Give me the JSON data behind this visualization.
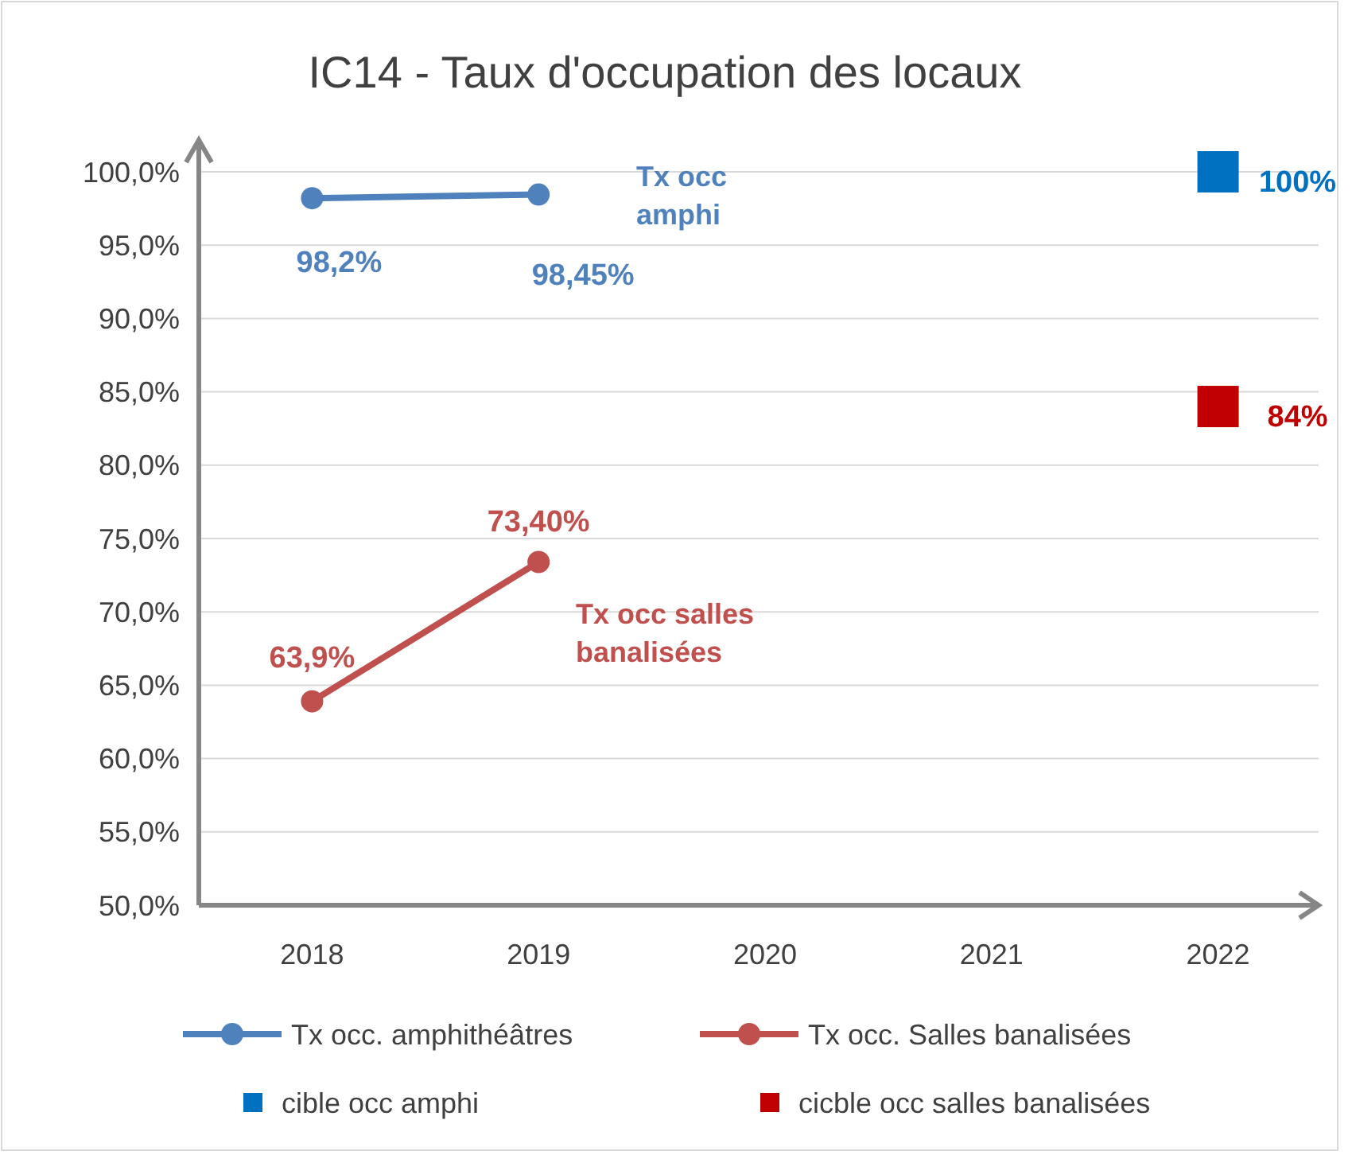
{
  "chart_data": {
    "type": "line",
    "title": "IC14 - Taux d'occupation des locaux",
    "categories": [
      "2018",
      "2019",
      "2020",
      "2021",
      "2022"
    ],
    "series": [
      {
        "name": "Tx occ. amphithéâtres",
        "color": "#4f81bd",
        "values": [
          98.2,
          98.45,
          null,
          null,
          null
        ],
        "marker": "circle",
        "value_labels": [
          "98,2%",
          "98,45%",
          null,
          null,
          null
        ]
      },
      {
        "name": "Tx occ. Salles banalisées",
        "color": "#c0504d",
        "values": [
          63.9,
          73.4,
          null,
          null,
          null
        ],
        "marker": "circle",
        "value_labels": [
          "63,9%",
          "73,40%",
          null,
          null,
          null
        ]
      },
      {
        "name": "cible occ amphi",
        "type": "scatter",
        "color": "#0070c0",
        "values": [
          null,
          null,
          null,
          null,
          100
        ],
        "marker": "square",
        "value_labels": [
          null,
          null,
          null,
          null,
          "100%"
        ]
      },
      {
        "name": "cicble occ salles banalisées",
        "type": "scatter",
        "color": "#c00000",
        "values": [
          null,
          null,
          null,
          null,
          84
        ],
        "marker": "square",
        "value_labels": [
          null,
          null,
          null,
          null,
          "84%"
        ]
      }
    ],
    "ylim": [
      50,
      100
    ],
    "yticks": [
      {
        "value": 50,
        "label": "50,0%"
      },
      {
        "value": 55,
        "label": "55,0%"
      },
      {
        "value": 60,
        "label": "60,0%"
      },
      {
        "value": 65,
        "label": "65,0%"
      },
      {
        "value": 70,
        "label": "70,0%"
      },
      {
        "value": 75,
        "label": "75,0%"
      },
      {
        "value": 80,
        "label": "80,0%"
      },
      {
        "value": 85,
        "label": "85,0%"
      },
      {
        "value": 90,
        "label": "90,0%"
      },
      {
        "value": 95,
        "label": "95,0%"
      },
      {
        "value": 100,
        "label": "100,0%"
      }
    ],
    "grid": "y",
    "legend": "bottom",
    "annotations": [
      "Tx occ amphi",
      "Tx occ salles banalisées"
    ]
  }
}
